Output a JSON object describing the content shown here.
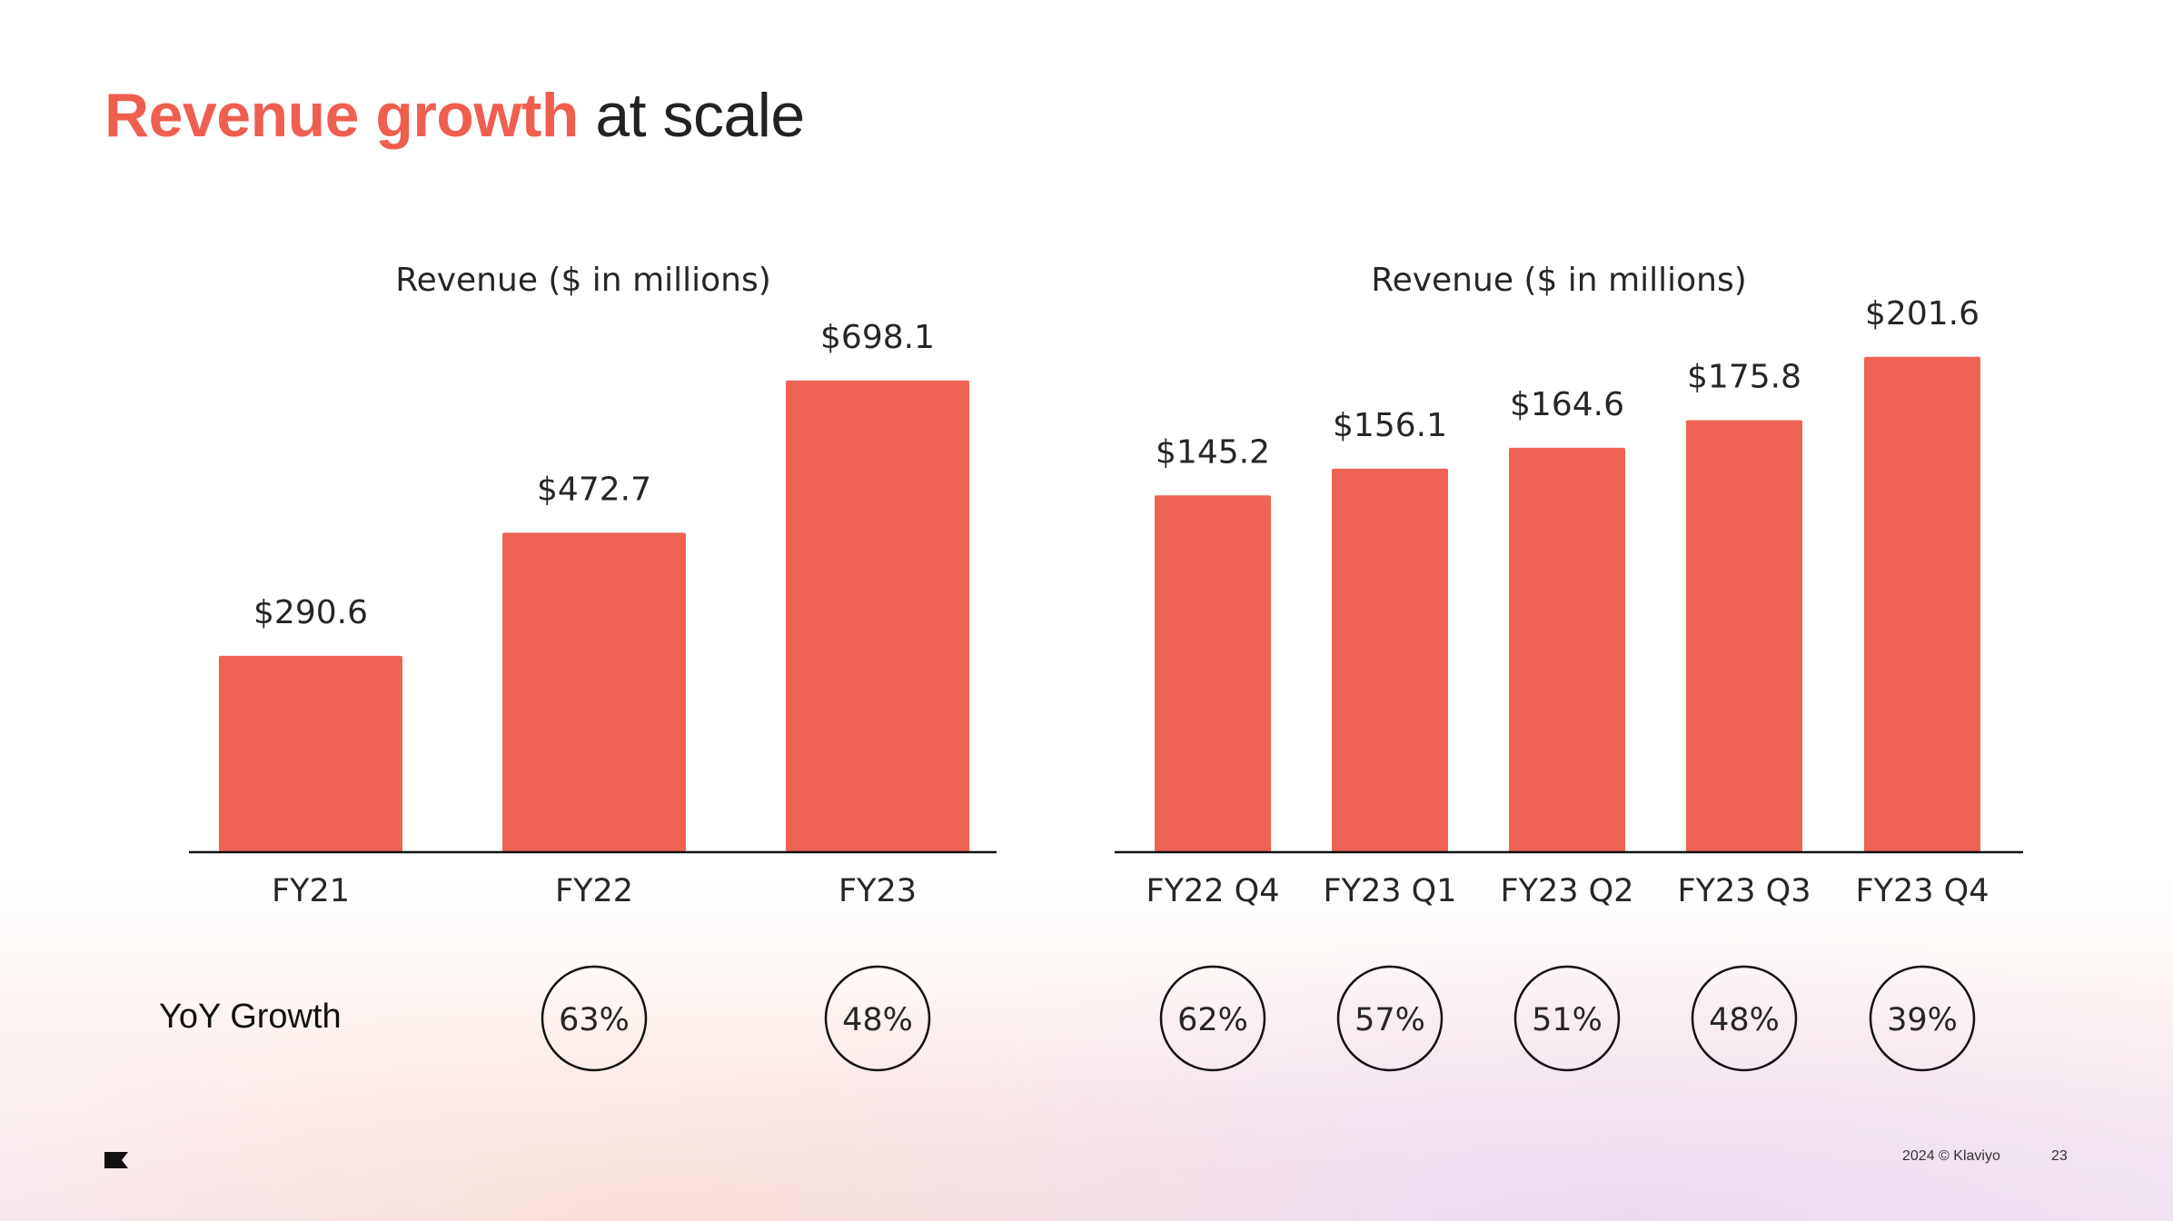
{
  "slide": {
    "title_accent": "Revenue growth",
    "title_rest": " at scale",
    "yoy_label": "YoY Growth",
    "footer_copyright": "2024 © Klaviyo",
    "page_number": "23",
    "logo_icon": "klaviyo-flag-icon"
  },
  "colors": {
    "accent": "#ee5f50",
    "bar": "#ee6354",
    "text": "#262626"
  },
  "chart_data": [
    {
      "type": "bar",
      "title": "Revenue ($ in millions)",
      "categories": [
        "FY21",
        "FY22",
        "FY23"
      ],
      "values": [
        290.6,
        472.7,
        698.1
      ],
      "value_labels": [
        "$290.6",
        "$472.7",
        "$698.1"
      ],
      "growth": [
        "",
        "63%",
        "48%"
      ],
      "ylim": [
        0,
        800
      ],
      "xlabel": "",
      "ylabel": "",
      "grid": false
    },
    {
      "type": "bar",
      "title": "Revenue ($ in millions)",
      "categories": [
        "FY22 Q4",
        "FY23 Q1",
        "FY23 Q2",
        "FY23 Q3",
        "FY23 Q4"
      ],
      "values": [
        145.2,
        156.1,
        164.6,
        175.8,
        201.6
      ],
      "value_labels": [
        "$145.2",
        "$156.1",
        "$164.6",
        "$175.8",
        "$201.6"
      ],
      "growth": [
        "62%",
        "57%",
        "51%",
        "48%",
        "39%"
      ],
      "ylim": [
        0,
        220
      ],
      "xlabel": "",
      "ylabel": "",
      "grid": false
    }
  ]
}
